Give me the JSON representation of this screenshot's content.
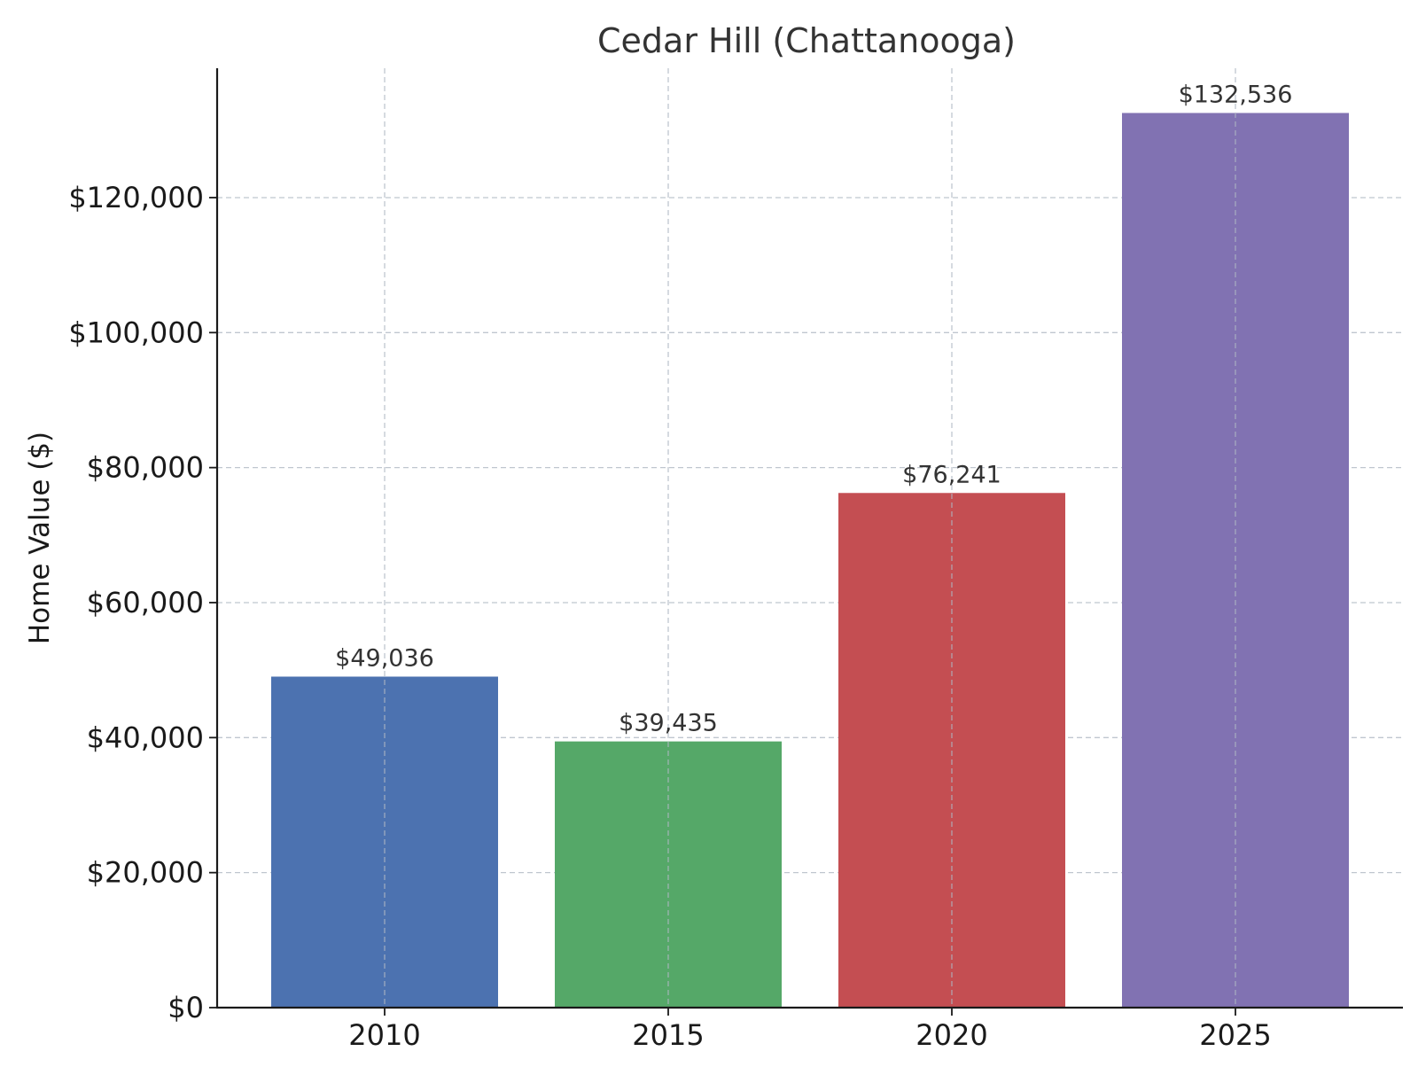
{
  "chart_data": {
    "type": "bar",
    "title": "Cedar Hill (Chattanooga)",
    "xlabel": "",
    "ylabel": "Home Value ($)",
    "categories": [
      "2010",
      "2015",
      "2020",
      "2025"
    ],
    "values": [
      49036,
      39435,
      76241,
      132536
    ],
    "value_labels": [
      "$49,036",
      "$39,435",
      "$76,241",
      "$132,536"
    ],
    "bar_colors": [
      "#4c72b0",
      "#55a868",
      "#c44e52",
      "#8172b2"
    ],
    "ylim": [
      0,
      139163
    ],
    "yticks": [
      0,
      20000,
      40000,
      60000,
      80000,
      100000,
      120000
    ],
    "ytick_labels": [
      "$0",
      "$20,000",
      "$40,000",
      "$60,000",
      "$80,000",
      "$100,000",
      "$120,000"
    ],
    "grid": true,
    "legend": "none"
  }
}
